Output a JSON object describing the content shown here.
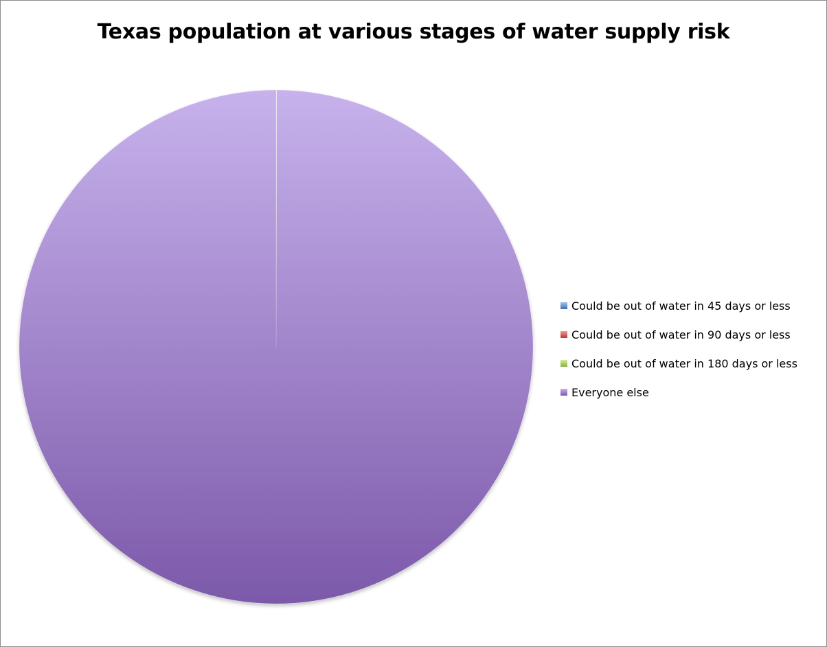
{
  "chart_data": {
    "type": "pie",
    "title": "Texas population at various stages of water supply risk",
    "series": [
      {
        "values": [
          0.02,
          0.01,
          0.01,
          99.96
        ]
      }
    ],
    "categories": [
      "Could be out of water in 45 days or less",
      "Could be out of water in 90 days or less",
      "Could be out of water in 180 days or less",
      "Everyone else"
    ],
    "colors": [
      "#4f81bd",
      "#c0504d",
      "#9bbb59",
      "#8064a2"
    ],
    "legend_position": "right"
  }
}
